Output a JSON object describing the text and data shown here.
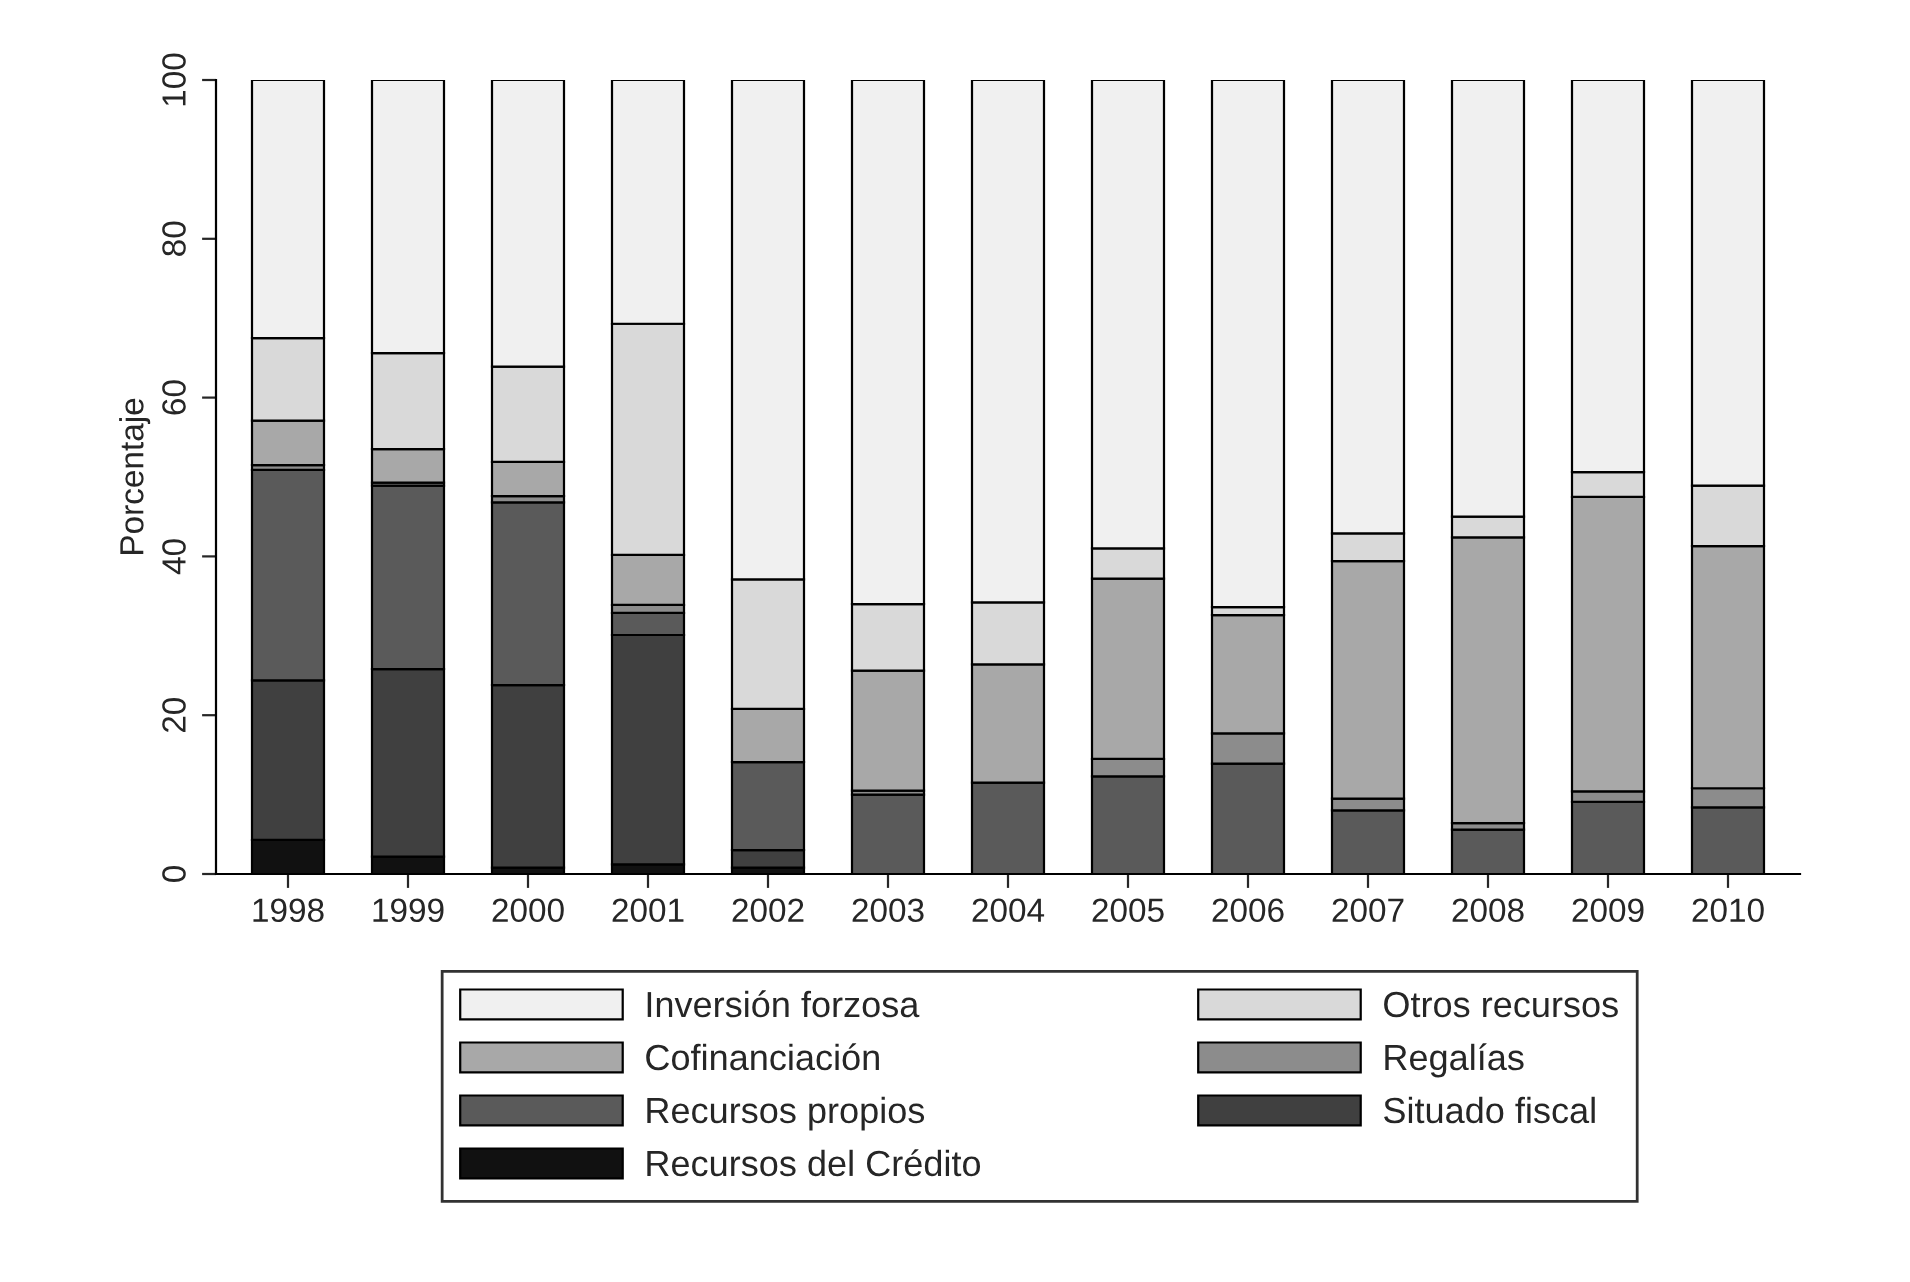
{
  "chart_data": {
    "type": "bar",
    "stacked": true,
    "ylabel": "Porcentaje",
    "categories": [
      "1998",
      "1999",
      "2000",
      "2001",
      "2002",
      "2003",
      "2004",
      "2005",
      "2006",
      "2007",
      "2008",
      "2009",
      "2010"
    ],
    "series": [
      {
        "name": "Recursos del Crédito",
        "color": "#111111",
        "values": [
          4.3,
          2.2,
          0.8,
          1.2,
          0.8,
          null,
          null,
          null,
          null,
          null,
          null,
          null,
          null
        ]
      },
      {
        "name": "Situado fiscal",
        "color": "#404040",
        "values": [
          20.1,
          23.6,
          23.0,
          28.9,
          2.2,
          null,
          null,
          null,
          null,
          null,
          null,
          null,
          null
        ]
      },
      {
        "name": "Recursos propios",
        "color": "#5a5a5a",
        "values": [
          26.5,
          23.1,
          23.0,
          2.8,
          11.1,
          10.0,
          11.5,
          12.3,
          13.9,
          8.0,
          5.6,
          9.1,
          8.4
        ]
      },
      {
        "name": "Regalías",
        "color": "#8c8c8c",
        "values": [
          0.6,
          0.4,
          0.8,
          1.0,
          null,
          0.5,
          null,
          2.2,
          3.8,
          1.5,
          0.8,
          1.3,
          2.4
        ]
      },
      {
        "name": "Cofinanciación",
        "color": "#a8a8a8",
        "values": [
          5.6,
          4.2,
          4.3,
          6.3,
          6.7,
          15.1,
          14.9,
          22.7,
          14.9,
          29.9,
          36.0,
          37.1,
          30.5
        ]
      },
      {
        "name": "Otros recursos",
        "color": "#d9d9d9",
        "values": [
          10.4,
          12.1,
          12.0,
          29.1,
          16.3,
          8.4,
          7.8,
          3.8,
          1.0,
          3.5,
          2.6,
          3.1,
          7.6
        ]
      },
      {
        "name": "Inversión forzosa",
        "color": "#f0f0f0",
        "values": [
          32.5,
          34.4,
          36.1,
          30.7,
          62.9,
          66.0,
          65.8,
          59.0,
          66.4,
          57.1,
          55.0,
          49.4,
          51.1
        ]
      }
    ],
    "ylim": [
      0,
      100
    ],
    "yticks": [
      0,
      20,
      40,
      60,
      80,
      100
    ],
    "grid": false,
    "legend": "bottom"
  }
}
